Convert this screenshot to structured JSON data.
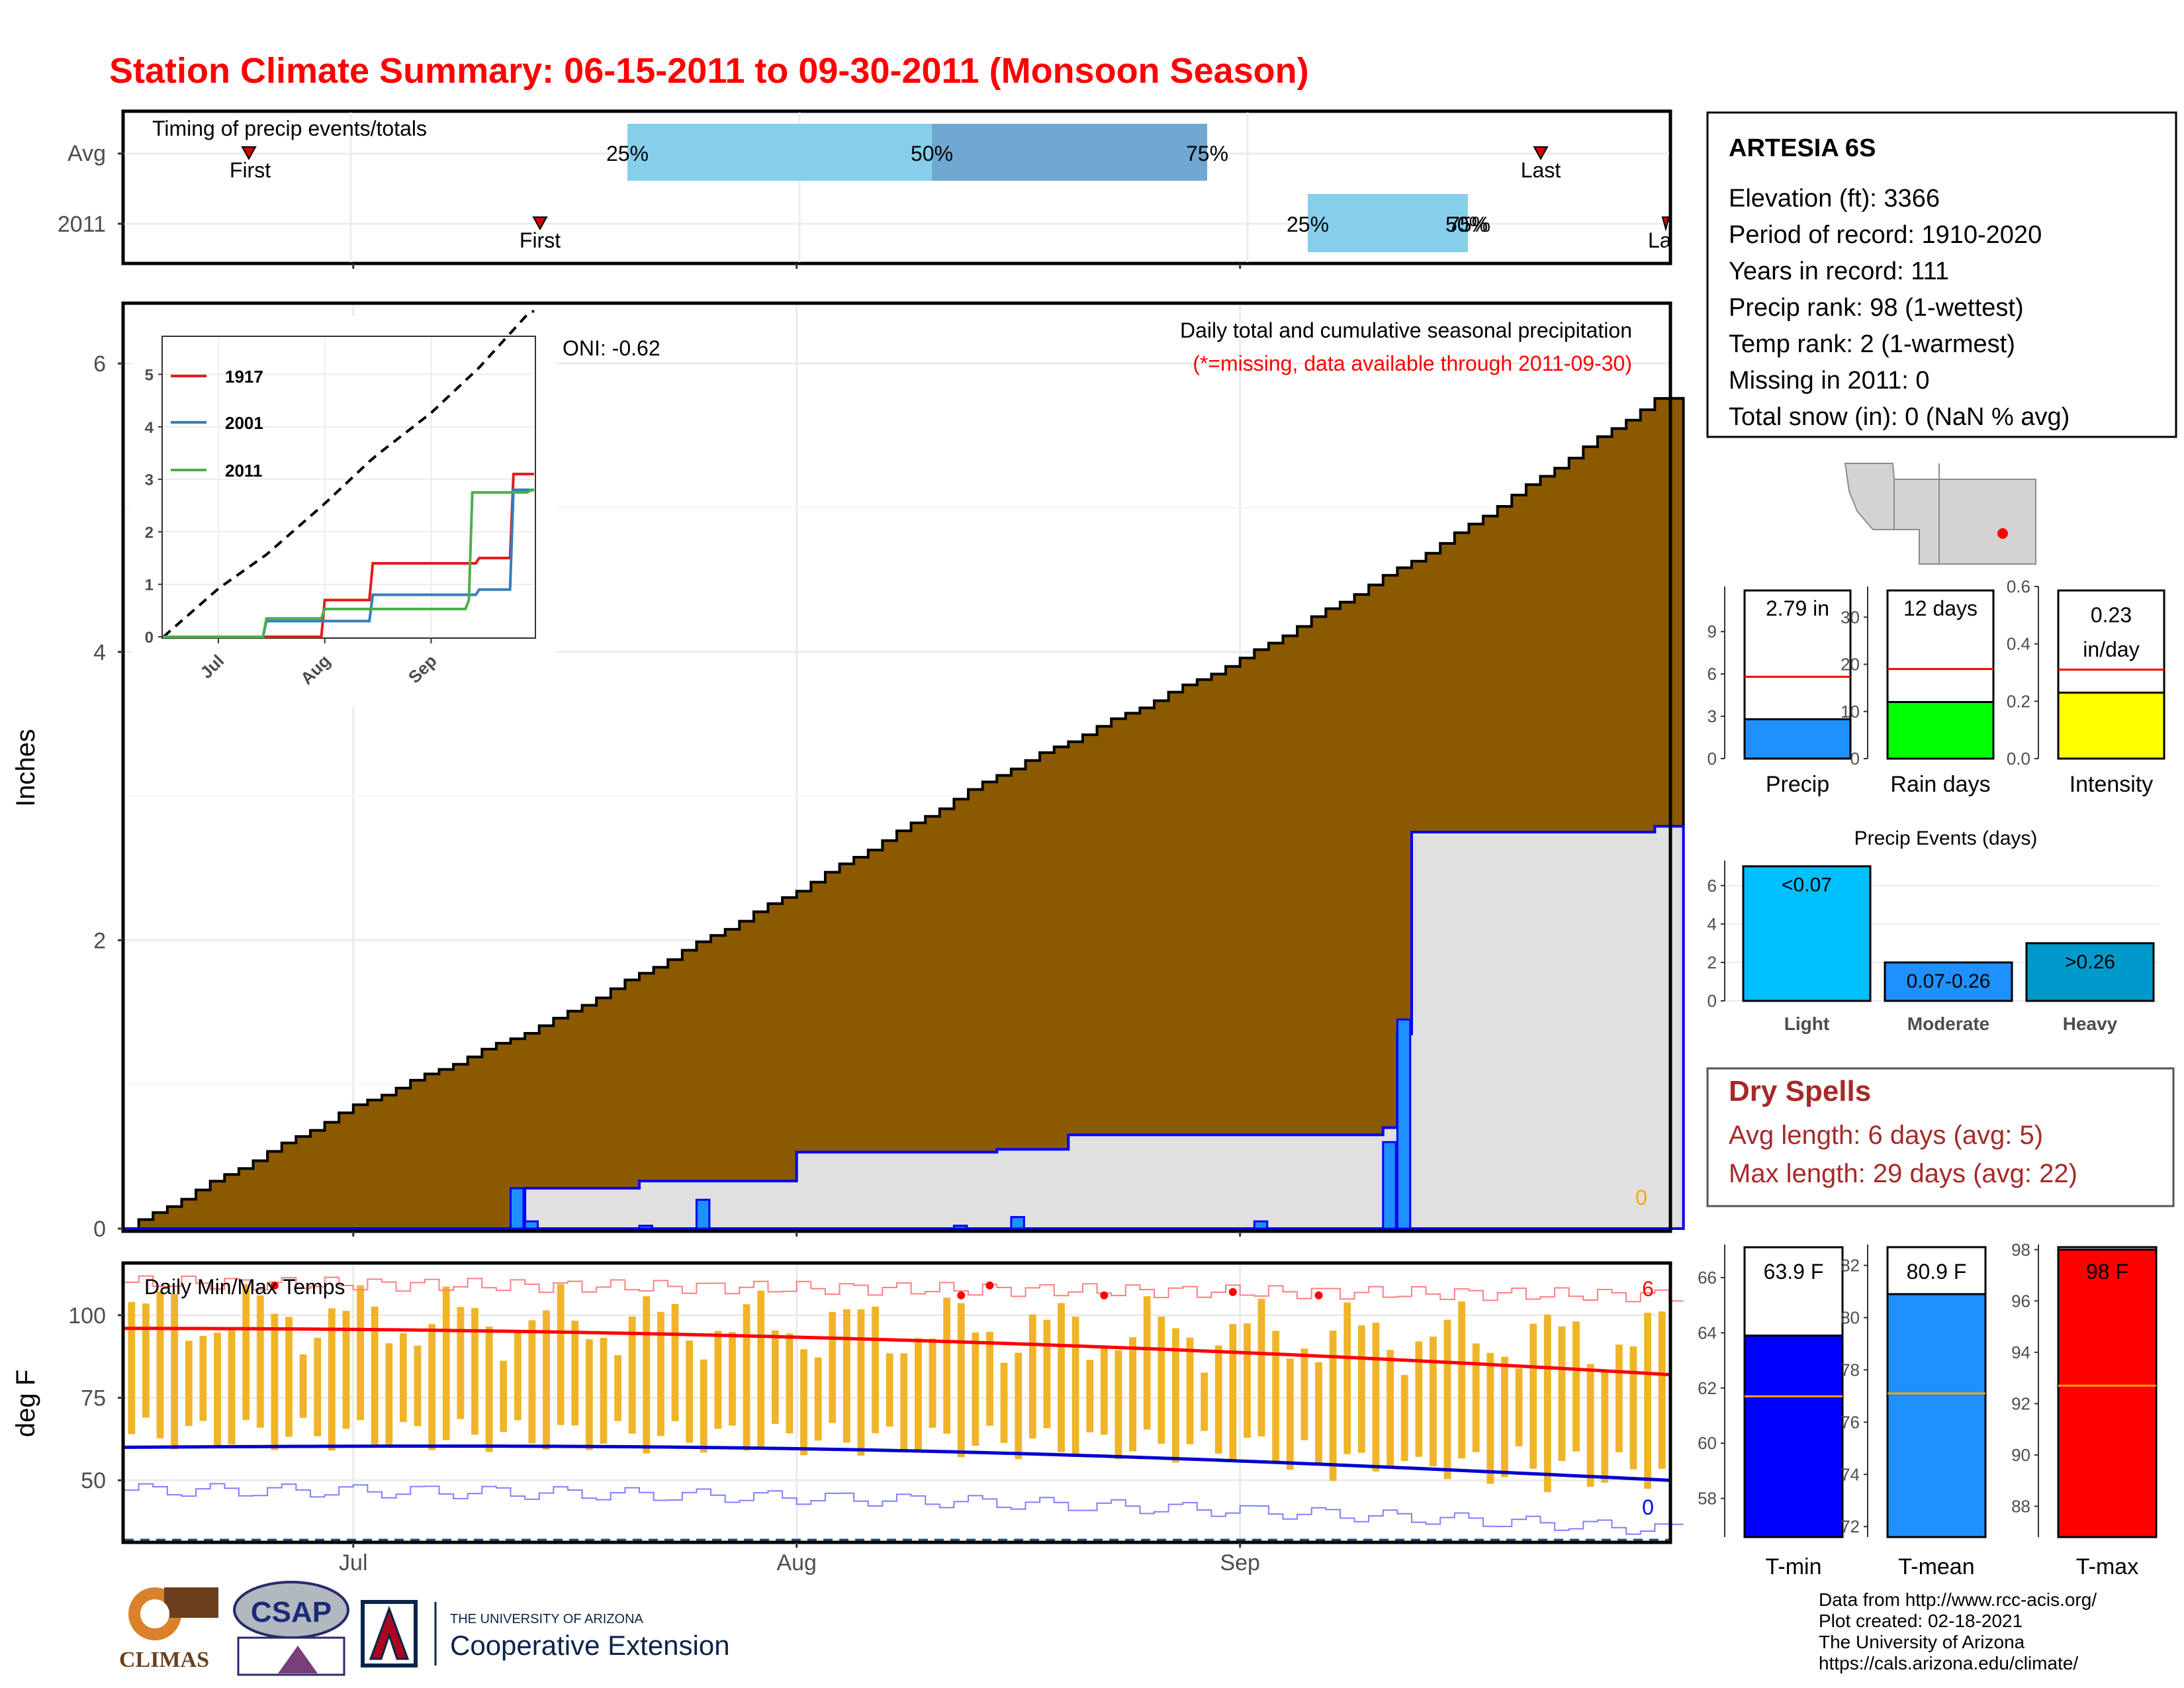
{
  "title": "Station Climate Summary: 06-15-2011 to 09-30-2011 (Monsoon Season)",
  "colors": {
    "title": "#ff0000",
    "brown": "#8b5a00",
    "blue": "#0000ff",
    "light_blue": "#87ceeb",
    "mid_blue": "#6fa8d0",
    "orange": "#f0b429",
    "red": "#ff0000",
    "dry_spell": "#a52a2a"
  },
  "timing": {
    "title": "Timing of precip events/totals",
    "rows": [
      "Avg",
      "2011"
    ],
    "avg": {
      "first": "First",
      "last": "Last",
      "p25": "25%",
      "p50": "50%",
      "p75": "75%"
    },
    "y2011": {
      "first": "First",
      "last": "La",
      "p25": "25%",
      "p50": "50%",
      "p75": "75%"
    }
  },
  "main_chart": {
    "ylabel": "Inches",
    "yticks": [
      "0",
      "2",
      "4",
      "6"
    ],
    "xticks": [
      "Jul",
      "Aug",
      "Sep"
    ],
    "oni": "ONI: -0.62",
    "subtitle": "Daily total and cumulative seasonal precipitation",
    "missing_note": "(*=missing, data available through 2011-09-30)",
    "zero_label": "0"
  },
  "inset": {
    "yticks": [
      "0",
      "1",
      "2",
      "3",
      "4",
      "5"
    ],
    "xticks": [
      "Jul",
      "Aug",
      "Sep"
    ],
    "legend": [
      "1917",
      "2001",
      "2011"
    ]
  },
  "station": {
    "name": "ARTESIA 6S",
    "lines": [
      "Elevation (ft): 3366",
      "Period of record: 1910-2020",
      "Years in record: 111",
      "Precip rank: 98 (1-wettest)",
      "Temp rank: 2 (1-warmest)",
      "Missing in 2011: 0",
      "Total snow (in): 0 (NaN % avg)"
    ]
  },
  "mini_bars": [
    {
      "label": "Precip",
      "value_text": "2.79 in",
      "yticks": [
        "0",
        "3",
        "6",
        "9"
      ]
    },
    {
      "label": "Rain days",
      "value_text": "12 days",
      "yticks": [
        "0",
        "10",
        "20",
        "30"
      ]
    },
    {
      "label": "Intensity",
      "value_text": "0.23",
      "value_text2": "in/day",
      "yticks": [
        "0.0",
        "0.2",
        "0.4",
        "0.6"
      ]
    }
  ],
  "events": {
    "title": "Precip Events (days)",
    "yticks": [
      "0",
      "2",
      "4",
      "6"
    ],
    "bars": [
      {
        "label": "Light",
        "text": "<0.07"
      },
      {
        "label": "Moderate",
        "text": "0.07-0.26"
      },
      {
        "label": "Heavy",
        "text": ">0.26"
      }
    ]
  },
  "dry_spells": {
    "title": "Dry Spells",
    "avg": "Avg length: 6 days (avg: 5)",
    "max": "Max length: 29 days (avg: 22)"
  },
  "temps": {
    "title": "Daily Min/Max Temps",
    "ylabel": "deg F",
    "yticks": [
      "50",
      "75",
      "100"
    ],
    "count_high": "6",
    "count_low": "0"
  },
  "temp_bars": [
    {
      "label": "T-min",
      "value_text": "63.9 F",
      "yticks": [
        "58",
        "60",
        "62",
        "64",
        "66"
      ]
    },
    {
      "label": "T-mean",
      "value_text": "80.9 F",
      "yticks": [
        "72",
        "74",
        "76",
        "78",
        "80",
        "82"
      ]
    },
    {
      "label": "T-max",
      "value_text": "98 F",
      "yticks": [
        "88",
        "90",
        "92",
        "94",
        "96",
        "98"
      ]
    }
  ],
  "footer": [
    "Data from http://www.rcc-acis.org/",
    "Plot created: 02-18-2021",
    "The University of Arizona",
    "https://cals.arizona.edu/climate/"
  ],
  "logos": {
    "climas": "CLIMAS",
    "csap": "CSAP",
    "ua_small": "THE UNIVERSITY OF ARIZONA",
    "ua_big": "Cooperative Extension"
  },
  "chart_data": {
    "type": "area",
    "title": "Station Climate Summary: 06-15-2011 to 09-30-2011 (Monsoon Season)",
    "ylabel": "Inches",
    "ylim": [
      0,
      6.4
    ],
    "x_range": [
      "2011-06-15",
      "2011-09-30"
    ],
    "series": [
      {
        "name": "Average cumulative precipitation",
        "x": [
          "2011-06-15",
          "2011-07-01",
          "2011-07-15",
          "2011-08-01",
          "2011-08-15",
          "2011-09-01",
          "2011-09-15",
          "2011-09-30"
        ],
        "values": [
          0.0,
          0.85,
          1.45,
          2.35,
          3.15,
          3.95,
          4.75,
          5.75
        ]
      },
      {
        "name": "2011 cumulative precipitation",
        "x": [
          "2011-06-15",
          "2011-07-12",
          "2011-07-13",
          "2011-07-21",
          "2011-08-01",
          "2011-08-15",
          "2011-08-20",
          "2011-09-11",
          "2011-09-12",
          "2011-09-13",
          "2011-09-30"
        ],
        "values": [
          0.0,
          0.0,
          0.28,
          0.33,
          0.53,
          0.55,
          0.65,
          0.7,
          1.35,
          2.75,
          2.79
        ]
      },
      {
        "name": "2011 daily precipitation",
        "x": [
          "2011-07-12",
          "2011-07-13",
          "2011-07-21",
          "2011-07-25",
          "2011-08-12",
          "2011-08-16",
          "2011-09-02",
          "2011-09-11",
          "2011-09-12"
        ],
        "values": [
          0.28,
          0.05,
          0.02,
          0.2,
          0.02,
          0.08,
          0.05,
          0.6,
          1.45
        ]
      }
    ],
    "inset": {
      "type": "line",
      "series": [
        {
          "name": "1917",
          "x": [
            "2011-06-15",
            "2011-08-01",
            "2011-08-15",
            "2011-09-15",
            "2011-09-25",
            "2011-09-30"
          ],
          "values": [
            0,
            0.7,
            1.4,
            1.5,
            3.1,
            3.1
          ]
        },
        {
          "name": "2001",
          "x": [
            "2011-06-15",
            "2011-07-15",
            "2011-08-15",
            "2011-09-15",
            "2011-09-25",
            "2011-09-30"
          ],
          "values": [
            0,
            0.3,
            0.8,
            0.9,
            2.8,
            2.8
          ]
        },
        {
          "name": "2011",
          "x": [
            "2011-06-15",
            "2011-07-15",
            "2011-08-01",
            "2011-09-12",
            "2011-09-13",
            "2011-09-30"
          ],
          "values": [
            0,
            0.35,
            0.53,
            0.7,
            2.75,
            2.79
          ]
        }
      ]
    },
    "temperatures": {
      "ylabel": "deg F",
      "ylim": [
        32,
        115
      ],
      "avg_max_start": 96,
      "avg_max_end": 82,
      "avg_min_start": 60,
      "avg_min_end": 50,
      "freeze_line": 32
    },
    "precip_totals": {
      "precip_in": 2.79,
      "precip_avg_in": 5.8,
      "rain_days": 12,
      "rain_days_avg": 19,
      "intensity": 0.23,
      "intensity_avg": 0.31
    },
    "precip_events": {
      "categories": [
        "Light",
        "Moderate",
        "Heavy"
      ],
      "values": [
        7,
        2,
        3
      ]
    },
    "temp_summary": {
      "tmin": 63.9,
      "tmin_avg": 61.7,
      "tmean": 80.9,
      "tmean_avg": 77.1,
      "tmax": 98,
      "tmax_avg": 92.7
    }
  }
}
